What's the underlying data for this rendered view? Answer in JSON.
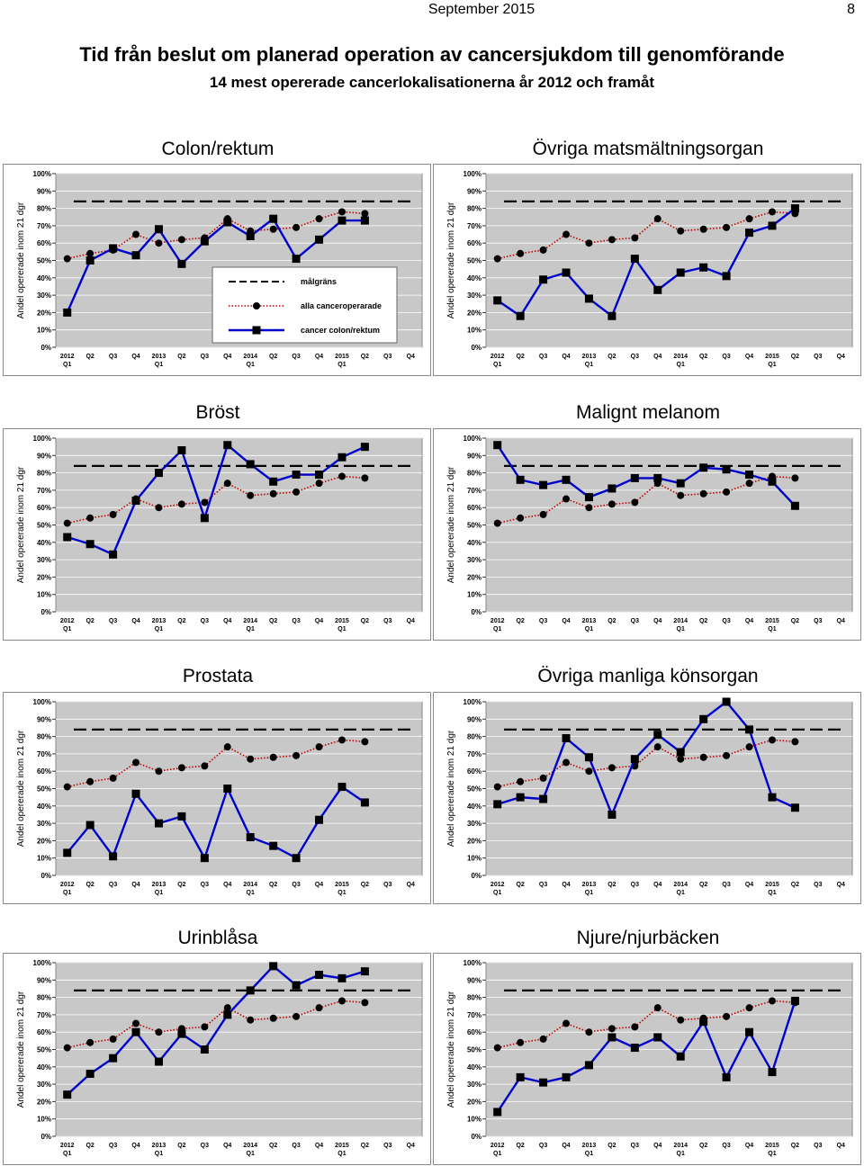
{
  "header": {
    "date": "September 2015",
    "page": "8"
  },
  "title": "Tid från beslut om planerad operation av cancersjukdom till genomförande",
  "subtitle": "14 mest opererade cancerlokalisationerna år 2012 och framåt",
  "chart_data": [
    {
      "type": "line",
      "title": "Colon/rektum",
      "y_label": "Andel opererade inom 21 dgr",
      "legend": true,
      "target": 84,
      "target_label": "målgräns",
      "target_color": "#000000",
      "categories": [
        "2012\nQ1",
        "Q2",
        "Q3",
        "Q4",
        "2013\nQ1",
        "Q2",
        "Q3",
        "Q4",
        "2014\nQ1",
        "Q2",
        "Q3",
        "Q4",
        "2015\nQ1",
        "Q2",
        "Q3",
        "Q4"
      ],
      "ylim": [
        0,
        100
      ],
      "yticks": [
        {
          "value": 0,
          "label": "0%"
        },
        {
          "value": 10,
          "label": "10%"
        },
        {
          "value": 20,
          "label": "20%"
        },
        {
          "value": 30,
          "label": "30%"
        },
        {
          "value": 40,
          "label": "40%"
        },
        {
          "value": 50,
          "label": "50%"
        },
        {
          "value": 60,
          "label": "60%"
        },
        {
          "value": 70,
          "label": "70%"
        },
        {
          "value": 80,
          "label": "80%"
        },
        {
          "value": 90,
          "label": "90%"
        },
        {
          "value": 100,
          "label": "100%"
        }
      ],
      "grid": true,
      "series": [
        {
          "name": "alla canceroperarade",
          "color": "#c00000",
          "marker": "circle",
          "dash": "dotted",
          "values": [
            51,
            54,
            56,
            65,
            60,
            62,
            63,
            74,
            67,
            68,
            69,
            74,
            78,
            77,
            null,
            null
          ]
        },
        {
          "name": "cancer colon/rektum",
          "color": "#0000cc",
          "marker": "square",
          "dash": "solid",
          "values": [
            20,
            50,
            57,
            53,
            68,
            48,
            61,
            72,
            64,
            74,
            51,
            62,
            73,
            73,
            null,
            null
          ]
        }
      ]
    },
    {
      "type": "line",
      "title": "Övriga matsmältningsorgan",
      "y_label": "Andel opererade inom 21 dgr",
      "legend": false,
      "target": 84,
      "target_color": "#000000",
      "categories": [
        "2012\nQ1",
        "Q2",
        "Q3",
        "Q4",
        "2013\nQ1",
        "Q2",
        "Q3",
        "Q4",
        "2014\nQ1",
        "Q2",
        "Q3",
        "Q4",
        "2015\nQ1",
        "Q2",
        "Q3",
        "Q4"
      ],
      "ylim": [
        0,
        100
      ],
      "yticks": [
        {
          "value": 0,
          "label": "0%"
        },
        {
          "value": 10,
          "label": "10%"
        },
        {
          "value": 20,
          "label": "20%"
        },
        {
          "value": 30,
          "label": "30%"
        },
        {
          "value": 40,
          "label": "40%"
        },
        {
          "value": 50,
          "label": "50%"
        },
        {
          "value": 60,
          "label": "60%"
        },
        {
          "value": 70,
          "label": "70%"
        },
        {
          "value": 80,
          "label": "80%"
        },
        {
          "value": 90,
          "label": "90%"
        },
        {
          "value": 100,
          "label": "100%"
        }
      ],
      "grid": true,
      "series": [
        {
          "color": "#c00000",
          "marker": "circle",
          "dash": "dotted",
          "values": [
            51,
            54,
            56,
            65,
            60,
            62,
            63,
            74,
            67,
            68,
            69,
            74,
            78,
            77,
            null,
            null
          ]
        },
        {
          "color": "#0000cc",
          "marker": "square",
          "dash": "solid",
          "values": [
            27,
            18,
            39,
            43,
            28,
            18,
            51,
            33,
            43,
            46,
            41,
            66,
            70,
            80,
            null,
            null
          ]
        }
      ]
    },
    {
      "type": "line",
      "title": "Bröst",
      "y_label": "Andel opererade inom 21 dgr",
      "legend": false,
      "target": 84,
      "target_color": "#000000",
      "categories": [
        "2012\nQ1",
        "Q2",
        "Q3",
        "Q4",
        "2013\nQ1",
        "Q2",
        "Q3",
        "Q4",
        "2014\nQ1",
        "Q2",
        "Q3",
        "Q4",
        "2015\nQ1",
        "Q2",
        "Q3",
        "Q4"
      ],
      "ylim": [
        0,
        100
      ],
      "yticks": [
        {
          "value": 0,
          "label": "0%"
        },
        {
          "value": 10,
          "label": "10%"
        },
        {
          "value": 20,
          "label": "20%"
        },
        {
          "value": 30,
          "label": "30%"
        },
        {
          "value": 40,
          "label": "40%"
        },
        {
          "value": 50,
          "label": "50%"
        },
        {
          "value": 60,
          "label": "60%"
        },
        {
          "value": 70,
          "label": "70%"
        },
        {
          "value": 80,
          "label": "80%"
        },
        {
          "value": 90,
          "label": "90%"
        },
        {
          "value": 100,
          "label": "100%"
        }
      ],
      "grid": true,
      "series": [
        {
          "color": "#c00000",
          "marker": "circle",
          "dash": "dotted",
          "values": [
            51,
            54,
            56,
            65,
            60,
            62,
            63,
            74,
            67,
            68,
            69,
            74,
            78,
            77,
            null,
            null
          ]
        },
        {
          "color": "#0000cc",
          "marker": "square",
          "dash": "solid",
          "values": [
            43,
            39,
            33,
            64,
            80,
            93,
            54,
            96,
            85,
            75,
            79,
            79,
            89,
            95,
            null,
            null
          ]
        }
      ]
    },
    {
      "type": "line",
      "title": "Malignt melanom",
      "y_label": "Andel opererade inom 21 dgr",
      "legend": false,
      "target": 84,
      "target_color": "#000000",
      "categories": [
        "2012\nQ1",
        "Q2",
        "Q3",
        "Q4",
        "2013\nQ1",
        "Q2",
        "Q3",
        "Q4",
        "2014\nQ1",
        "Q2",
        "Q3",
        "Q4",
        "2015\nQ1",
        "Q2",
        "Q3",
        "Q4"
      ],
      "ylim": [
        0,
        100
      ],
      "yticks": [
        {
          "value": 0,
          "label": "0%"
        },
        {
          "value": 10,
          "label": "10%"
        },
        {
          "value": 20,
          "label": "20%"
        },
        {
          "value": 30,
          "label": "30%"
        },
        {
          "value": 40,
          "label": "40%"
        },
        {
          "value": 50,
          "label": "50%"
        },
        {
          "value": 60,
          "label": "60%"
        },
        {
          "value": 70,
          "label": "70%"
        },
        {
          "value": 80,
          "label": "80%"
        },
        {
          "value": 90,
          "label": "90%"
        },
        {
          "value": 100,
          "label": "100%"
        }
      ],
      "grid": true,
      "series": [
        {
          "color": "#c00000",
          "marker": "circle",
          "dash": "dotted",
          "values": [
            51,
            54,
            56,
            65,
            60,
            62,
            63,
            74,
            67,
            68,
            69,
            74,
            78,
            77,
            null,
            null
          ]
        },
        {
          "color": "#0000cc",
          "marker": "square",
          "dash": "solid",
          "values": [
            96,
            76,
            73,
            76,
            66,
            71,
            77,
            77,
            74,
            83,
            82,
            79,
            75,
            61,
            null,
            null
          ]
        }
      ]
    },
    {
      "type": "line",
      "title": "Prostata",
      "y_label": "Andel opererade inom 21 dgr",
      "legend": false,
      "target": 84,
      "target_color": "#000000",
      "categories": [
        "2012\nQ1",
        "Q2",
        "Q3",
        "Q4",
        "2013\nQ1",
        "Q2",
        "Q3",
        "Q4",
        "2014\nQ1",
        "Q2",
        "Q3",
        "Q4",
        "2015\nQ1",
        "Q2",
        "Q3",
        "Q4"
      ],
      "ylim": [
        0,
        100
      ],
      "yticks": [
        {
          "value": 0,
          "label": "0%"
        },
        {
          "value": 10,
          "label": "10%"
        },
        {
          "value": 20,
          "label": "20%"
        },
        {
          "value": 30,
          "label": "30%"
        },
        {
          "value": 40,
          "label": "40%"
        },
        {
          "value": 50,
          "label": "50%"
        },
        {
          "value": 60,
          "label": "60%"
        },
        {
          "value": 70,
          "label": "70%"
        },
        {
          "value": 80,
          "label": "80%"
        },
        {
          "value": 90,
          "label": "90%"
        },
        {
          "value": 100,
          "label": "100%"
        }
      ],
      "grid": true,
      "series": [
        {
          "color": "#c00000",
          "marker": "circle",
          "dash": "dotted",
          "values": [
            51,
            54,
            56,
            65,
            60,
            62,
            63,
            74,
            67,
            68,
            69,
            74,
            78,
            77,
            null,
            null
          ]
        },
        {
          "color": "#0000cc",
          "marker": "square",
          "dash": "solid",
          "values": [
            13,
            29,
            11,
            47,
            30,
            34,
            10,
            50,
            22,
            17,
            10,
            32,
            51,
            42,
            null,
            null
          ]
        }
      ]
    },
    {
      "type": "line",
      "title": "Övriga manliga könsorgan",
      "y_label": "Andel opererade inom 21 dgr",
      "legend": false,
      "target": 84,
      "target_color": "#000000",
      "categories": [
        "2012\nQ1",
        "Q2",
        "Q3",
        "Q4",
        "2013\nQ1",
        "Q2",
        "Q3",
        "Q4",
        "2014\nQ1",
        "Q2",
        "Q3",
        "Q4",
        "2015\nQ1",
        "Q2",
        "Q3",
        "Q4"
      ],
      "ylim": [
        0,
        100
      ],
      "yticks": [
        {
          "value": 0,
          "label": "0%"
        },
        {
          "value": 10,
          "label": "10%"
        },
        {
          "value": 20,
          "label": "20%"
        },
        {
          "value": 30,
          "label": "30%"
        },
        {
          "value": 40,
          "label": "40%"
        },
        {
          "value": 50,
          "label": "50%"
        },
        {
          "value": 60,
          "label": "60%"
        },
        {
          "value": 70,
          "label": "70%"
        },
        {
          "value": 80,
          "label": "80%"
        },
        {
          "value": 90,
          "label": "90%"
        },
        {
          "value": 100,
          "label": "100%"
        }
      ],
      "grid": true,
      "series": [
        {
          "color": "#c00000",
          "marker": "circle",
          "dash": "dotted",
          "values": [
            51,
            54,
            56,
            65,
            60,
            62,
            63,
            74,
            67,
            68,
            69,
            74,
            78,
            77,
            null,
            null
          ]
        },
        {
          "color": "#0000cc",
          "marker": "square",
          "dash": "solid",
          "values": [
            41,
            45,
            44,
            79,
            68,
            35,
            67,
            81,
            71,
            90,
            100,
            84,
            45,
            39,
            null,
            null
          ]
        }
      ]
    },
    {
      "type": "line",
      "title": "Urinblåsa",
      "y_label": "Andel opererade inom 21 dgr",
      "legend": false,
      "target": 84,
      "target_color": "#000000",
      "categories": [
        "2012\nQ1",
        "Q2",
        "Q3",
        "Q4",
        "2013\nQ1",
        "Q2",
        "Q3",
        "Q4",
        "2014\nQ1",
        "Q2",
        "Q3",
        "Q4",
        "2015\nQ1",
        "Q2",
        "Q3",
        "Q4"
      ],
      "ylim": [
        0,
        100
      ],
      "yticks": [
        {
          "value": 0,
          "label": "0%"
        },
        {
          "value": 10,
          "label": "10%"
        },
        {
          "value": 20,
          "label": "20%"
        },
        {
          "value": 30,
          "label": "30%"
        },
        {
          "value": 40,
          "label": "40%"
        },
        {
          "value": 50,
          "label": "50%"
        },
        {
          "value": 60,
          "label": "60%"
        },
        {
          "value": 70,
          "label": "70%"
        },
        {
          "value": 80,
          "label": "80%"
        },
        {
          "value": 90,
          "label": "90%"
        },
        {
          "value": 100,
          "label": "100%"
        }
      ],
      "grid": true,
      "series": [
        {
          "color": "#c00000",
          "marker": "circle",
          "dash": "dotted",
          "values": [
            51,
            54,
            56,
            65,
            60,
            62,
            63,
            74,
            67,
            68,
            69,
            74,
            78,
            77,
            null,
            null
          ]
        },
        {
          "color": "#0000cc",
          "marker": "square",
          "dash": "solid",
          "values": [
            24,
            36,
            45,
            60,
            43,
            59,
            50,
            70,
            84,
            98,
            87,
            93,
            91,
            95,
            null,
            null
          ]
        }
      ]
    },
    {
      "type": "line",
      "title": "Njure/njurbäcken",
      "y_label": "Andel opererade inom 21 dgr",
      "legend": false,
      "target": 84,
      "target_color": "#000000",
      "categories": [
        "2012\nQ1",
        "Q2",
        "Q3",
        "Q4",
        "2013\nQ1",
        "Q2",
        "Q3",
        "Q4",
        "2014\nQ1",
        "Q2",
        "Q3",
        "Q4",
        "2015\nQ1",
        "Q2",
        "Q3",
        "Q4"
      ],
      "ylim": [
        0,
        100
      ],
      "yticks": [
        {
          "value": 0,
          "label": "0%"
        },
        {
          "value": 10,
          "label": "10%"
        },
        {
          "value": 20,
          "label": "20%"
        },
        {
          "value": 30,
          "label": "30%"
        },
        {
          "value": 40,
          "label": "40%"
        },
        {
          "value": 50,
          "label": "50%"
        },
        {
          "value": 60,
          "label": "60%"
        },
        {
          "value": 70,
          "label": "70%"
        },
        {
          "value": 80,
          "label": "80%"
        },
        {
          "value": 90,
          "label": "90%"
        },
        {
          "value": 100,
          "label": "100%"
        }
      ],
      "grid": true,
      "series": [
        {
          "color": "#c00000",
          "marker": "circle",
          "dash": "dotted",
          "values": [
            51,
            54,
            56,
            65,
            60,
            62,
            63,
            74,
            67,
            68,
            69,
            74,
            78,
            77,
            null,
            null
          ]
        },
        {
          "color": "#0000cc",
          "marker": "square",
          "dash": "solid",
          "values": [
            14,
            34,
            31,
            34,
            41,
            57,
            51,
            57,
            46,
            66,
            34,
            60,
            37,
            78,
            null,
            null
          ]
        }
      ]
    }
  ]
}
